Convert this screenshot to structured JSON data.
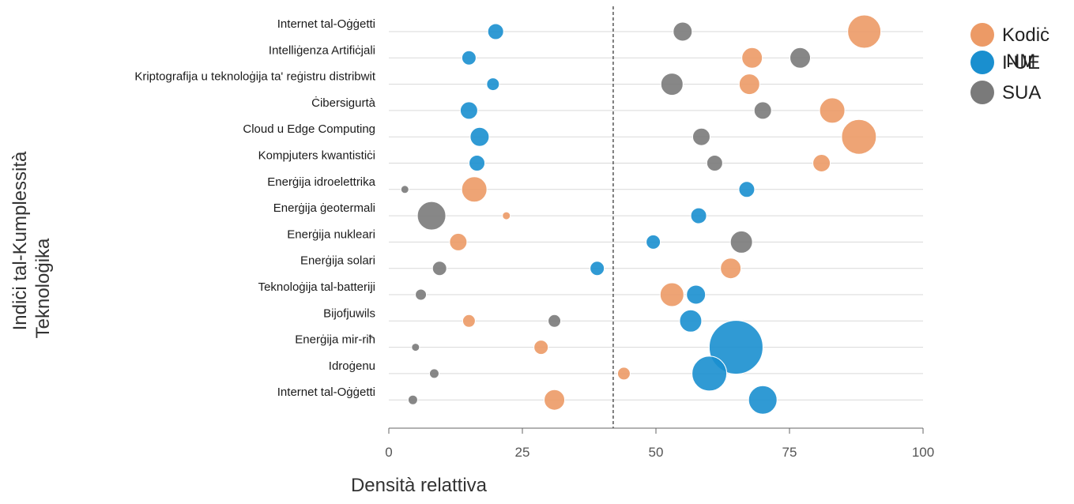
{
  "chart_data": {
    "type": "scatter",
    "xlabel": "Densità relattiva",
    "ylabel_lines": [
      "Indiċi tal-Kumplessità",
      "Teknoloġika"
    ],
    "xlim": [
      0,
      100
    ],
    "xticks": [
      0,
      25,
      50,
      75,
      100
    ],
    "reference_line_x": 42,
    "categories": [
      "Internet tal-Oġġetti",
      "Intelliġenza Artifiċjali",
      "Kriptografija u teknoloġija ta' reġistru distribwit",
      "Ċibersigurtà",
      "Cloud u Edge Computing",
      "Kompjuters kwantistiċi",
      "Enerġija idroelettrika",
      "Enerġija ġeotermali",
      "Enerġija nukleari",
      "Enerġija solari",
      "Teknoloġija tal-batteriji",
      "Bijofjuwils",
      "Enerġija mir-riħ",
      "Idroġenu",
      "Internet tal-Oġġetti"
    ],
    "legend_position": "top-right",
    "series": [
      {
        "name": "Kodiċ",
        "color": "#ec9a66",
        "x": [
          89,
          68,
          67.5,
          83,
          88,
          81,
          16,
          22,
          13,
          64,
          53,
          15,
          28.5,
          44,
          31
        ],
        "size": [
          21,
          13,
          13,
          16,
          22,
          11,
          16,
          5,
          11,
          13,
          15,
          8,
          9,
          8,
          13
        ]
      },
      {
        "name": "I-UE",
        "color": "#1a8fcf",
        "x": [
          20,
          15,
          19.5,
          15,
          17,
          16.5,
          67,
          58,
          49.5,
          39,
          57.5,
          56.5,
          65,
          60,
          70
        ],
        "size": [
          10,
          9,
          8,
          11,
          12,
          10,
          10,
          10,
          9,
          9,
          12,
          14,
          34,
          22,
          18
        ]
      },
      {
        "name": "SUA",
        "color": "#7a7a7a",
        "x": [
          55,
          77,
          53,
          70,
          58.5,
          61,
          3,
          8,
          66,
          9.5,
          6,
          31,
          5,
          8.5,
          4.5
        ],
        "size": [
          12,
          13,
          14,
          11,
          11,
          10,
          5,
          18,
          14,
          9,
          7,
          8,
          5,
          6,
          6
        ]
      }
    ],
    "legend_overlap_text": "NM"
  }
}
